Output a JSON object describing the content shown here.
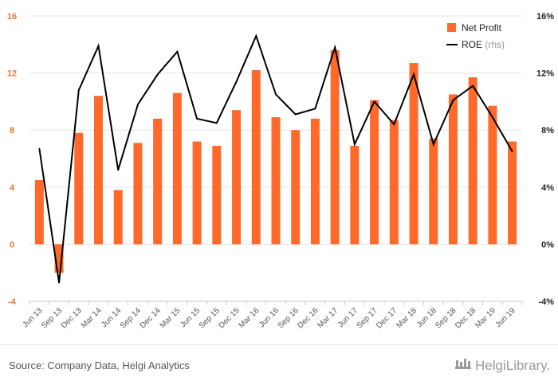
{
  "chart_data": {
    "type": "bar+line",
    "categories": [
      "Jun 13",
      "Sep 13",
      "Dec 13",
      "Mar 14",
      "Jun 14",
      "Sep 14",
      "Dec 14",
      "Mar 15",
      "Jun 15",
      "Sep 15",
      "Dec 15",
      "Mar 16",
      "Jun 16",
      "Sep 16",
      "Dec 16",
      "Mar 17",
      "Jun 17",
      "Sep 17",
      "Dec 17",
      "Mar 18",
      "Jun 18",
      "Sep 18",
      "Dec 18",
      "Mar 19",
      "Jun 19"
    ],
    "series": [
      {
        "name": "Net Profit",
        "type": "bar",
        "axis": "left",
        "color": "#ff6a2b",
        "values": [
          4.5,
          -2.0,
          7.8,
          10.4,
          3.8,
          7.1,
          8.8,
          10.6,
          7.2,
          6.9,
          9.4,
          12.2,
          8.9,
          8.0,
          8.8,
          13.6,
          6.9,
          10.1,
          8.7,
          12.7,
          7.4,
          10.5,
          11.7,
          9.7,
          7.2
        ]
      },
      {
        "name": "ROE",
        "name_suffix": "(rhs)",
        "type": "line",
        "axis": "right",
        "color": "#000000",
        "values": [
          6.7,
          -2.7,
          10.8,
          13.9,
          5.2,
          9.8,
          11.9,
          13.5,
          8.8,
          8.5,
          11.4,
          14.6,
          10.5,
          9.1,
          9.5,
          13.8,
          7.0,
          10.0,
          8.4,
          11.9,
          7.0,
          10.1,
          11.1,
          8.9,
          6.5
        ]
      }
    ],
    "y_left": {
      "ylim": [
        -4,
        16
      ],
      "ticks": [
        "-4",
        "0",
        "4",
        "8",
        "12",
        "16"
      ],
      "tick_values": [
        -4,
        0,
        4,
        8,
        12,
        16
      ]
    },
    "y_right": {
      "ylim": [
        -4,
        16
      ],
      "ticks": [
        "-4%",
        "0%",
        "4%",
        "8%",
        "12%",
        "16%"
      ],
      "tick_values": [
        -4,
        0,
        4,
        8,
        12,
        16
      ]
    },
    "grid": true,
    "legend_position": "top-right"
  },
  "footer": {
    "source": "Source: Company Data, Helgi Analytics",
    "logo_text": "HelgiLibrary."
  },
  "colors": {
    "accent": "#ff6a2b",
    "grid": "#e6e6e6",
    "left_tick": "#e8762d"
  }
}
